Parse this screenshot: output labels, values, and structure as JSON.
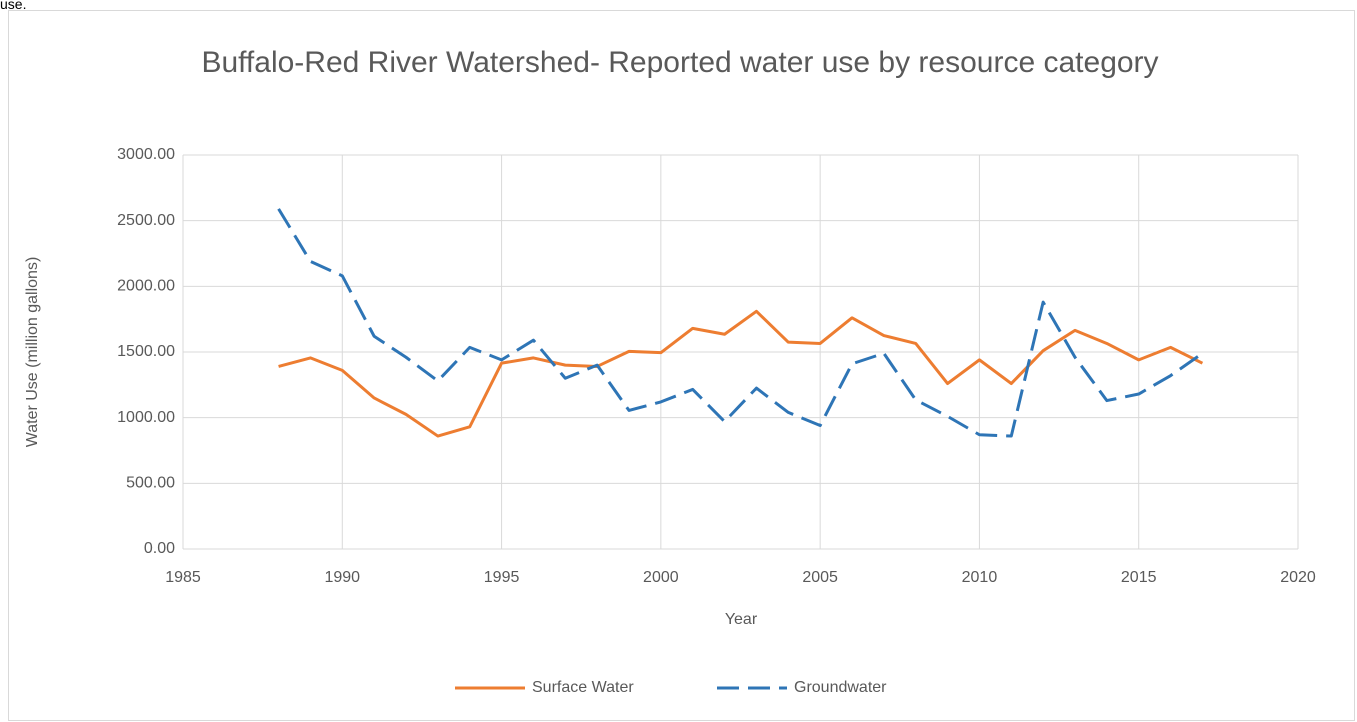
{
  "top_left_text": "use.",
  "chart_data": {
    "type": "line",
    "title": "Buffalo-Red River Watershed- Reported water use by resource category",
    "x_label": "Year",
    "y_label": "Water Use (million gallons)",
    "x": [
      1988,
      1989,
      1990,
      1991,
      1992,
      1993,
      1994,
      1995,
      1996,
      1997,
      1998,
      1999,
      2000,
      2001,
      2002,
      2003,
      2004,
      2005,
      2006,
      2007,
      2008,
      2009,
      2010,
      2011,
      2012,
      2013,
      2014,
      2015,
      2016,
      2017
    ],
    "series": [
      {
        "name": "Surface Water",
        "color": "#ed7d31",
        "dash": false,
        "values": [
          1390,
          1455,
          1360,
          1150,
          1025,
          860,
          930,
          1415,
          1455,
          1400,
          1390,
          1505,
          1495,
          1680,
          1635,
          1810,
          1575,
          1565,
          1760,
          1625,
          1565,
          1260,
          1440,
          1260,
          1510,
          1665,
          1565,
          1440,
          1535,
          1415
        ]
      },
      {
        "name": "Groundwater",
        "color": "#2e75b6",
        "dash": true,
        "values": [
          2590,
          2190,
          2080,
          1620,
          1460,
          1280,
          1535,
          1440,
          1590,
          1300,
          1400,
          1055,
          1120,
          1215,
          970,
          1225,
          1040,
          940,
          1410,
          1490,
          1135,
          1010,
          870,
          860,
          1880,
          1460,
          1130,
          1180,
          1320,
          1490
        ]
      }
    ],
    "xlim": [
      1985,
      2020
    ],
    "xticks": [
      1985,
      1990,
      1995,
      2000,
      2005,
      2010,
      2015,
      2020
    ],
    "ylim": [
      0,
      3000
    ],
    "yticks": [
      {
        "value": 0,
        "label": "0.00"
      },
      {
        "value": 500,
        "label": "500.00"
      },
      {
        "value": 1000,
        "label": "1000.00"
      },
      {
        "value": 1500,
        "label": "1500.00"
      },
      {
        "value": 2000,
        "label": "2000.00"
      },
      {
        "value": 2500,
        "label": "2500.00"
      },
      {
        "value": 3000,
        "label": "3000.00"
      }
    ],
    "grid": true,
    "legend": "bottom"
  }
}
